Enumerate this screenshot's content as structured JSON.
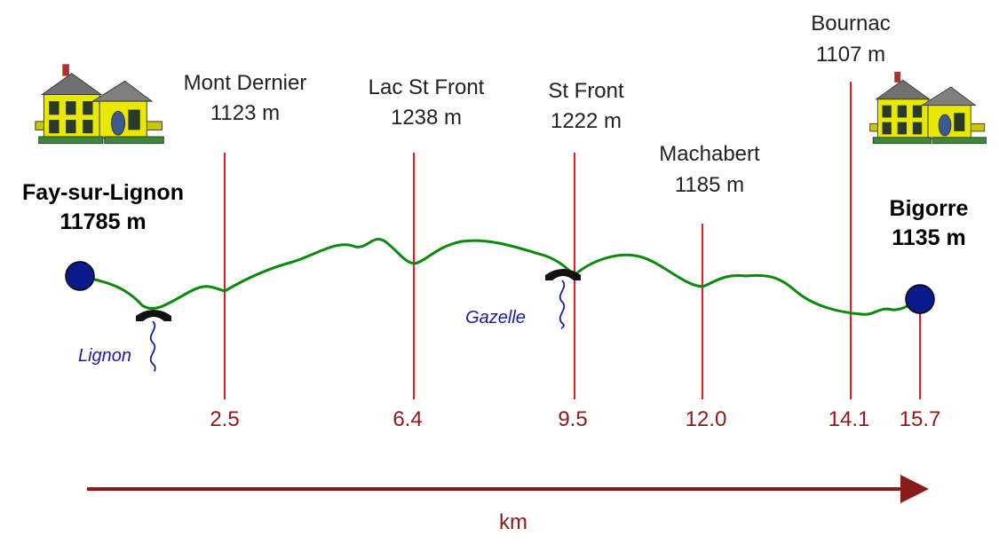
{
  "colors": {
    "profile": "#0a8a0a",
    "marker_line": "#e02020",
    "km_text": "#8b1a1a",
    "axis_arrow": "#8b1a1a",
    "endpoint_fill": "#0a1a8c",
    "river": "#1a1aa0"
  },
  "start": {
    "name": "Fay-sur-Lignon",
    "altitude": "11785 m",
    "icon": "house-icon"
  },
  "end": {
    "name": "Bigorre",
    "altitude": "1135 m",
    "icon": "house-icon",
    "km": "15.7"
  },
  "waypoints": [
    {
      "name": "Mont Dernier",
      "altitude": "1123 m",
      "km": "2.5"
    },
    {
      "name": "Lac St Front",
      "altitude": "1238 m",
      "km": "6.4"
    },
    {
      "name": "St Front",
      "altitude": "1222 m",
      "km": "9.5"
    },
    {
      "name": "Machabert",
      "altitude": "1185 m",
      "km": "12.0"
    },
    {
      "name": "Bournac",
      "altitude": "1107 m",
      "km": "14.1"
    }
  ],
  "rivers": [
    {
      "name": "Lignon",
      "icon": "bridge-icon"
    },
    {
      "name": "Gazelle",
      "icon": "bridge-icon"
    }
  ],
  "axis": {
    "label": "km"
  }
}
